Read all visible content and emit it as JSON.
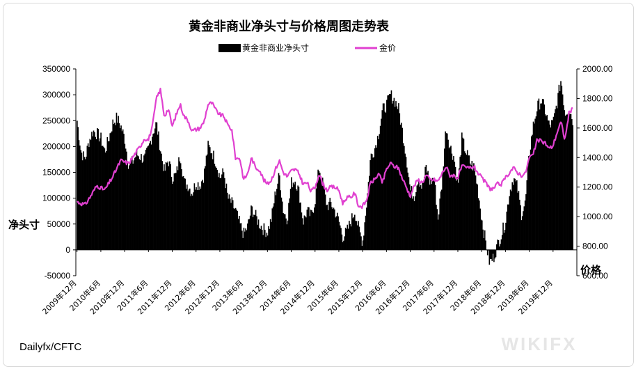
{
  "chart_data": {
    "type": "bar+line",
    "title": "黄金非商业净头寸与价格周图走势表",
    "legend": {
      "position": "top",
      "items": [
        {
          "label": "黄金非商业净头寸",
          "color": "#000000",
          "kind": "bar"
        },
        {
          "label": "金价",
          "color": "#e040d0",
          "kind": "line"
        }
      ]
    },
    "y_left": {
      "label": "净头寸",
      "range": [
        -50000,
        350000
      ],
      "ticks": [
        "350000",
        "300000",
        "250000",
        "200000",
        "150000",
        "100000",
        "50000",
        "0",
        "-50000"
      ]
    },
    "y_right": {
      "label": "价格",
      "range": [
        600,
        2000
      ],
      "ticks": [
        "2000.00",
        "1800.00",
        "1600.00",
        "1400.00",
        "1200.00",
        "1000.00",
        "800.00",
        "600.00"
      ]
    },
    "x": {
      "range": [
        "2009-12",
        "2020-06"
      ],
      "tick_labels": [
        "2009年12月",
        "2010年6月",
        "2010年12月",
        "2011年6月",
        "2011年12月",
        "2012年6月",
        "2012年12月",
        "2013年6月",
        "2013年12月",
        "2014年6月",
        "2014年12月",
        "2015年6月",
        "2015年12月",
        "2016年6月",
        "2016年12月",
        "2017年6月",
        "2017年12月",
        "2018年6月",
        "2018年12月",
        "2019年6月",
        "2019年12月"
      ]
    },
    "series": [
      {
        "name": "黄金非商业净头寸",
        "type": "bar",
        "color": "#000000",
        "keypoints": [
          [
            "2009-12",
            250000
          ],
          [
            "2010-01",
            190000
          ],
          [
            "2010-02",
            175000
          ],
          [
            "2010-03",
            210000
          ],
          [
            "2010-04",
            230000
          ],
          [
            "2010-05",
            225000
          ],
          [
            "2010-06",
            215000
          ],
          [
            "2010-07",
            190000
          ],
          [
            "2010-08",
            215000
          ],
          [
            "2010-09",
            245000
          ],
          [
            "2010-10",
            255000
          ],
          [
            "2010-11",
            240000
          ],
          [
            "2010-12",
            215000
          ],
          [
            "2011-01",
            165000
          ],
          [
            "2011-02",
            170000
          ],
          [
            "2011-03",
            185000
          ],
          [
            "2011-04",
            180000
          ],
          [
            "2011-05",
            175000
          ],
          [
            "2011-06",
            195000
          ],
          [
            "2011-07",
            225000
          ],
          [
            "2011-08",
            245000
          ],
          [
            "2011-09",
            195000
          ],
          [
            "2011-10",
            150000
          ],
          [
            "2011-11",
            175000
          ],
          [
            "2011-12",
            140000
          ],
          [
            "2012-01",
            145000
          ],
          [
            "2012-02",
            185000
          ],
          [
            "2012-03",
            130000
          ],
          [
            "2012-04",
            125000
          ],
          [
            "2012-05",
            110000
          ],
          [
            "2012-06",
            130000
          ],
          [
            "2012-07",
            125000
          ],
          [
            "2012-08",
            145000
          ],
          [
            "2012-09",
            200000
          ],
          [
            "2012-10",
            190000
          ],
          [
            "2012-11",
            170000
          ],
          [
            "2012-12",
            140000
          ],
          [
            "2013-01",
            150000
          ],
          [
            "2013-02",
            100000
          ],
          [
            "2013-03",
            90000
          ],
          [
            "2013-04",
            75000
          ],
          [
            "2013-05",
            50000
          ],
          [
            "2013-06",
            30000
          ],
          [
            "2013-07",
            45000
          ],
          [
            "2013-08",
            80000
          ],
          [
            "2013-09",
            65000
          ],
          [
            "2013-10",
            50000
          ],
          [
            "2013-11",
            40000
          ],
          [
            "2013-12",
            35000
          ],
          [
            "2014-01",
            60000
          ],
          [
            "2014-02",
            110000
          ],
          [
            "2014-03",
            145000
          ],
          [
            "2014-04",
            75000
          ],
          [
            "2014-05",
            60000
          ],
          [
            "2014-06",
            130000
          ],
          [
            "2014-07",
            135000
          ],
          [
            "2014-08",
            110000
          ],
          [
            "2014-09",
            55000
          ],
          [
            "2014-10",
            75000
          ],
          [
            "2014-11",
            65000
          ],
          [
            "2014-12",
            95000
          ],
          [
            "2015-01",
            160000
          ],
          [
            "2015-02",
            125000
          ],
          [
            "2015-03",
            85000
          ],
          [
            "2015-04",
            90000
          ],
          [
            "2015-05",
            75000
          ],
          [
            "2015-06",
            55000
          ],
          [
            "2015-07",
            25000
          ],
          [
            "2015-08",
            35000
          ],
          [
            "2015-09",
            55000
          ],
          [
            "2015-10",
            75000
          ],
          [
            "2015-11",
            40000
          ],
          [
            "2015-12",
            15000
          ],
          [
            "2016-01",
            90000
          ],
          [
            "2016-02",
            180000
          ],
          [
            "2016-03",
            195000
          ],
          [
            "2016-04",
            225000
          ],
          [
            "2016-05",
            270000
          ],
          [
            "2016-06",
            280000
          ],
          [
            "2016-07",
            300000
          ],
          [
            "2016-08",
            290000
          ],
          [
            "2016-09",
            275000
          ],
          [
            "2016-10",
            230000
          ],
          [
            "2016-11",
            180000
          ],
          [
            "2016-12",
            115000
          ],
          [
            "2017-01",
            105000
          ],
          [
            "2017-02",
            140000
          ],
          [
            "2017-03",
            120000
          ],
          [
            "2017-04",
            160000
          ],
          [
            "2017-05",
            130000
          ],
          [
            "2017-06",
            140000
          ],
          [
            "2017-07",
            60000
          ],
          [
            "2017-08",
            130000
          ],
          [
            "2017-09",
            240000
          ],
          [
            "2017-10",
            200000
          ],
          [
            "2017-11",
            180000
          ],
          [
            "2017-12",
            125000
          ],
          [
            "2018-01",
            215000
          ],
          [
            "2018-02",
            190000
          ],
          [
            "2018-03",
            170000
          ],
          [
            "2018-04",
            160000
          ],
          [
            "2018-05",
            120000
          ],
          [
            "2018-06",
            60000
          ],
          [
            "2018-07",
            15000
          ],
          [
            "2018-08",
            -25000
          ],
          [
            "2018-09",
            -15000
          ],
          [
            "2018-10",
            10000
          ],
          [
            "2018-11",
            30000
          ],
          [
            "2018-12",
            55000
          ],
          [
            "2019-01",
            110000
          ],
          [
            "2019-02",
            140000
          ],
          [
            "2019-03",
            120000
          ],
          [
            "2019-04",
            70000
          ],
          [
            "2019-05",
            90000
          ],
          [
            "2019-06",
            185000
          ],
          [
            "2019-07",
            240000
          ],
          [
            "2019-08",
            275000
          ],
          [
            "2019-09",
            290000
          ],
          [
            "2019-10",
            270000
          ],
          [
            "2019-11",
            240000
          ],
          [
            "2019-12",
            245000
          ],
          [
            "2020-01",
            285000
          ],
          [
            "2020-02",
            330000
          ],
          [
            "2020-03",
            265000
          ],
          [
            "2020-04",
            275000
          ],
          [
            "2020-05",
            250000
          ]
        ]
      },
      {
        "name": "金价",
        "type": "line",
        "color": "#e040d0",
        "keypoints": [
          [
            "2009-12",
            1100
          ],
          [
            "2010-02",
            1080
          ],
          [
            "2010-03",
            1120
          ],
          [
            "2010-05",
            1210
          ],
          [
            "2010-07",
            1180
          ],
          [
            "2010-09",
            1270
          ],
          [
            "2010-11",
            1380
          ],
          [
            "2011-01",
            1360
          ],
          [
            "2011-02",
            1400
          ],
          [
            "2011-04",
            1480
          ],
          [
            "2011-05",
            1530
          ],
          [
            "2011-06",
            1520
          ],
          [
            "2011-07",
            1610
          ],
          [
            "2011-08",
            1800
          ],
          [
            "2011-09",
            1860
          ],
          [
            "2011-10",
            1680
          ],
          [
            "2011-11",
            1730
          ],
          [
            "2011-12",
            1610
          ],
          [
            "2012-01",
            1690
          ],
          [
            "2012-02",
            1760
          ],
          [
            "2012-03",
            1680
          ],
          [
            "2012-04",
            1650
          ],
          [
            "2012-05",
            1580
          ],
          [
            "2012-06",
            1590
          ],
          [
            "2012-07",
            1600
          ],
          [
            "2012-08",
            1640
          ],
          [
            "2012-09",
            1760
          ],
          [
            "2012-10",
            1770
          ],
          [
            "2012-11",
            1720
          ],
          [
            "2012-12",
            1690
          ],
          [
            "2013-01",
            1680
          ],
          [
            "2013-02",
            1620
          ],
          [
            "2013-03",
            1590
          ],
          [
            "2013-04",
            1390
          ],
          [
            "2013-05",
            1400
          ],
          [
            "2013-06",
            1250
          ],
          [
            "2013-07",
            1290
          ],
          [
            "2013-08",
            1400
          ],
          [
            "2013-09",
            1330
          ],
          [
            "2013-10",
            1320
          ],
          [
            "2013-11",
            1250
          ],
          [
            "2013-12",
            1220
          ],
          [
            "2014-01",
            1250
          ],
          [
            "2014-02",
            1320
          ],
          [
            "2014-03",
            1380
          ],
          [
            "2014-04",
            1300
          ],
          [
            "2014-05",
            1270
          ],
          [
            "2014-06",
            1310
          ],
          [
            "2014-07",
            1320
          ],
          [
            "2014-08",
            1290
          ],
          [
            "2014-09",
            1220
          ],
          [
            "2014-10",
            1230
          ],
          [
            "2014-11",
            1170
          ],
          [
            "2014-12",
            1200
          ],
          [
            "2015-01",
            1290
          ],
          [
            "2015-02",
            1220
          ],
          [
            "2015-03",
            1180
          ],
          [
            "2015-04",
            1200
          ],
          [
            "2015-05",
            1200
          ],
          [
            "2015-06",
            1180
          ],
          [
            "2015-07",
            1090
          ],
          [
            "2015-08",
            1130
          ],
          [
            "2015-09",
            1130
          ],
          [
            "2015-10",
            1160
          ],
          [
            "2015-11",
            1070
          ],
          [
            "2015-12",
            1070
          ],
          [
            "2016-01",
            1110
          ],
          [
            "2016-02",
            1230
          ],
          [
            "2016-03",
            1250
          ],
          [
            "2016-04",
            1290
          ],
          [
            "2016-05",
            1230
          ],
          [
            "2016-06",
            1320
          ],
          [
            "2016-07",
            1360
          ],
          [
            "2016-08",
            1340
          ],
          [
            "2016-09",
            1330
          ],
          [
            "2016-10",
            1260
          ],
          [
            "2016-11",
            1200
          ],
          [
            "2016-12",
            1140
          ],
          [
            "2017-01",
            1210
          ],
          [
            "2017-02",
            1250
          ],
          [
            "2017-03",
            1230
          ],
          [
            "2017-04",
            1280
          ],
          [
            "2017-05",
            1250
          ],
          [
            "2017-06",
            1250
          ],
          [
            "2017-07",
            1240
          ],
          [
            "2017-08",
            1290
          ],
          [
            "2017-09",
            1340
          ],
          [
            "2017-10",
            1280
          ],
          [
            "2017-11",
            1280
          ],
          [
            "2017-12",
            1260
          ],
          [
            "2018-01",
            1340
          ],
          [
            "2018-02",
            1330
          ],
          [
            "2018-03",
            1330
          ],
          [
            "2018-04",
            1340
          ],
          [
            "2018-05",
            1300
          ],
          [
            "2018-06",
            1260
          ],
          [
            "2018-07",
            1230
          ],
          [
            "2018-08",
            1190
          ],
          [
            "2018-09",
            1190
          ],
          [
            "2018-10",
            1220
          ],
          [
            "2018-11",
            1220
          ],
          [
            "2018-12",
            1260
          ],
          [
            "2019-01",
            1300
          ],
          [
            "2019-02",
            1330
          ],
          [
            "2019-03",
            1300
          ],
          [
            "2019-04",
            1280
          ],
          [
            "2019-05",
            1290
          ],
          [
            "2019-06",
            1400
          ],
          [
            "2019-07",
            1420
          ],
          [
            "2019-08",
            1520
          ],
          [
            "2019-09",
            1510
          ],
          [
            "2019-10",
            1500
          ],
          [
            "2019-11",
            1460
          ],
          [
            "2019-12",
            1480
          ],
          [
            "2020-01",
            1570
          ],
          [
            "2020-02",
            1640
          ],
          [
            "2020-03",
            1520
          ],
          [
            "2020-04",
            1700
          ],
          [
            "2020-05",
            1730
          ]
        ]
      }
    ]
  },
  "source": "Dailyfx/CFTC",
  "watermark": "WIKIFX"
}
